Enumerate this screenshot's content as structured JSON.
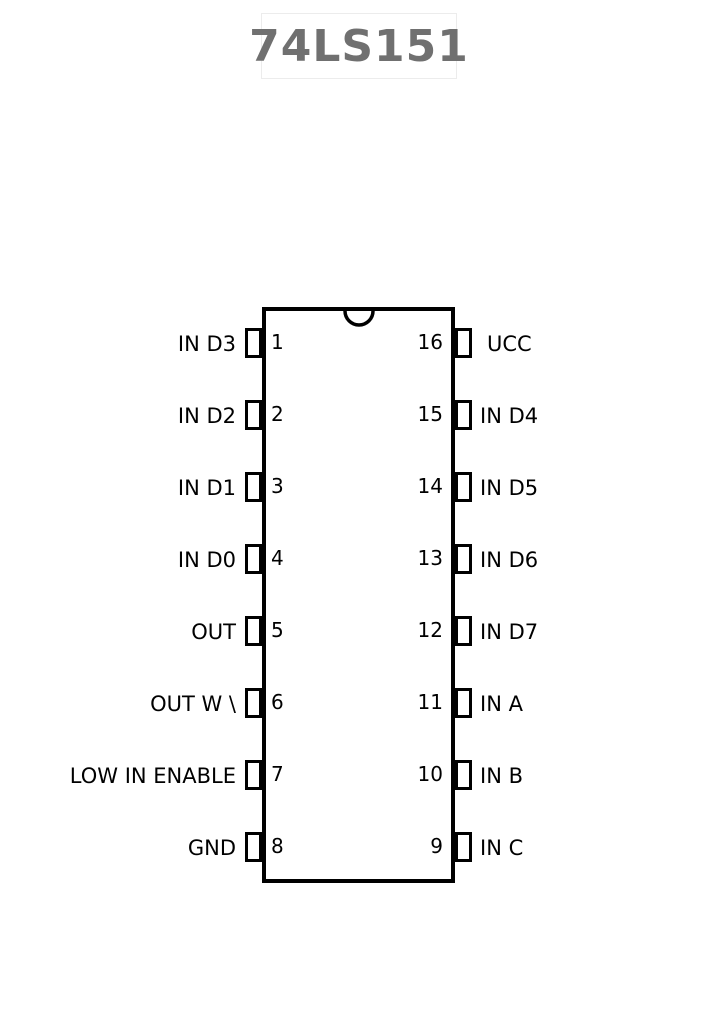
{
  "title": "74LS151",
  "left_pins": [
    {
      "number": "1",
      "label": "IN D3"
    },
    {
      "number": "2",
      "label": "IN D2"
    },
    {
      "number": "3",
      "label": "IN D1"
    },
    {
      "number": "4",
      "label": "IN D0"
    },
    {
      "number": "5",
      "label": "OUT"
    },
    {
      "number": "6",
      "label": "OUT W \\"
    },
    {
      "number": "7",
      "label": "LOW IN ENABLE"
    },
    {
      "number": "8",
      "label": "GND"
    }
  ],
  "right_pins": [
    {
      "number": "16",
      "label": "UCC"
    },
    {
      "number": "15",
      "label": "IN D4"
    },
    {
      "number": "14",
      "label": "IN D5"
    },
    {
      "number": "13",
      "label": "IN D6"
    },
    {
      "number": "12",
      "label": "IN D7"
    },
    {
      "number": "11",
      "label": "IN A"
    },
    {
      "number": "10",
      "label": "IN B"
    },
    {
      "number": "9",
      "label": "IN C"
    }
  ]
}
